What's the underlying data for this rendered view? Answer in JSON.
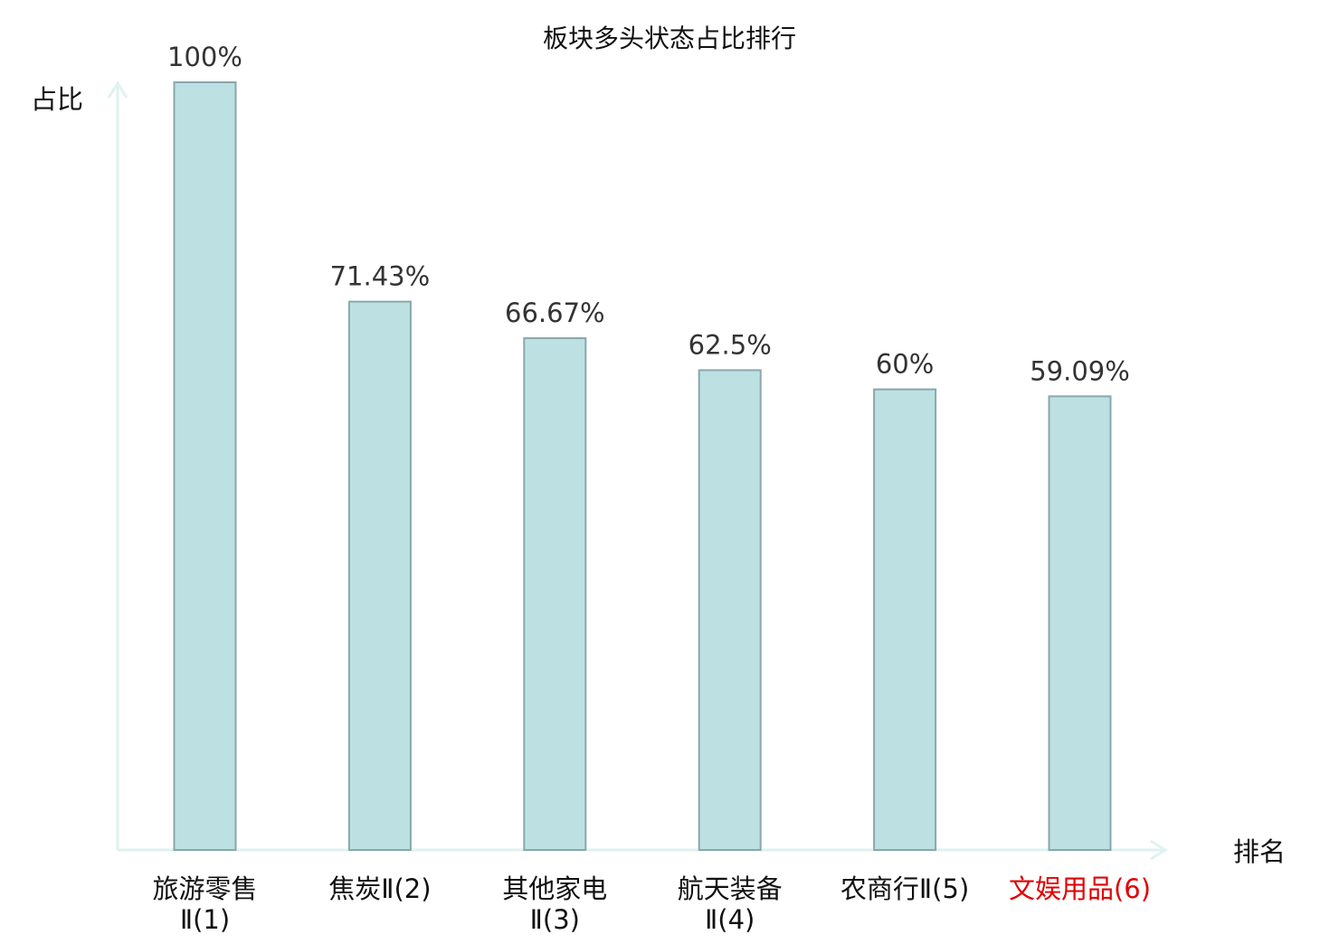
{
  "chart_data": {
    "type": "bar",
    "title": "板块多头状态占比排行",
    "ylabel": "占比",
    "xlabel": "排名",
    "ylim": [
      0,
      100
    ],
    "grid": false,
    "categories": [
      [
        "旅游零售",
        "Ⅱ(1)"
      ],
      [
        "焦炭Ⅱ(2)"
      ],
      [
        "其他家电",
        "Ⅱ(3)"
      ],
      [
        "航天装备",
        "Ⅱ(4)"
      ],
      [
        "农商行Ⅱ(5)"
      ],
      [
        "文娱用品(6)"
      ]
    ],
    "values": [
      100,
      71.43,
      66.67,
      62.5,
      60,
      59.09
    ],
    "data_labels": [
      "100%",
      "71.43%",
      "66.67%",
      "62.5%",
      "60%",
      "59.09%"
    ],
    "highlight_index": 5,
    "colors": {
      "bar_fill": "#bde0e3",
      "bar_stroke": "#88a8ab",
      "axis": "#dff2ef",
      "label": "#111111",
      "value_label": "#333333",
      "highlight": "#e00000"
    }
  }
}
